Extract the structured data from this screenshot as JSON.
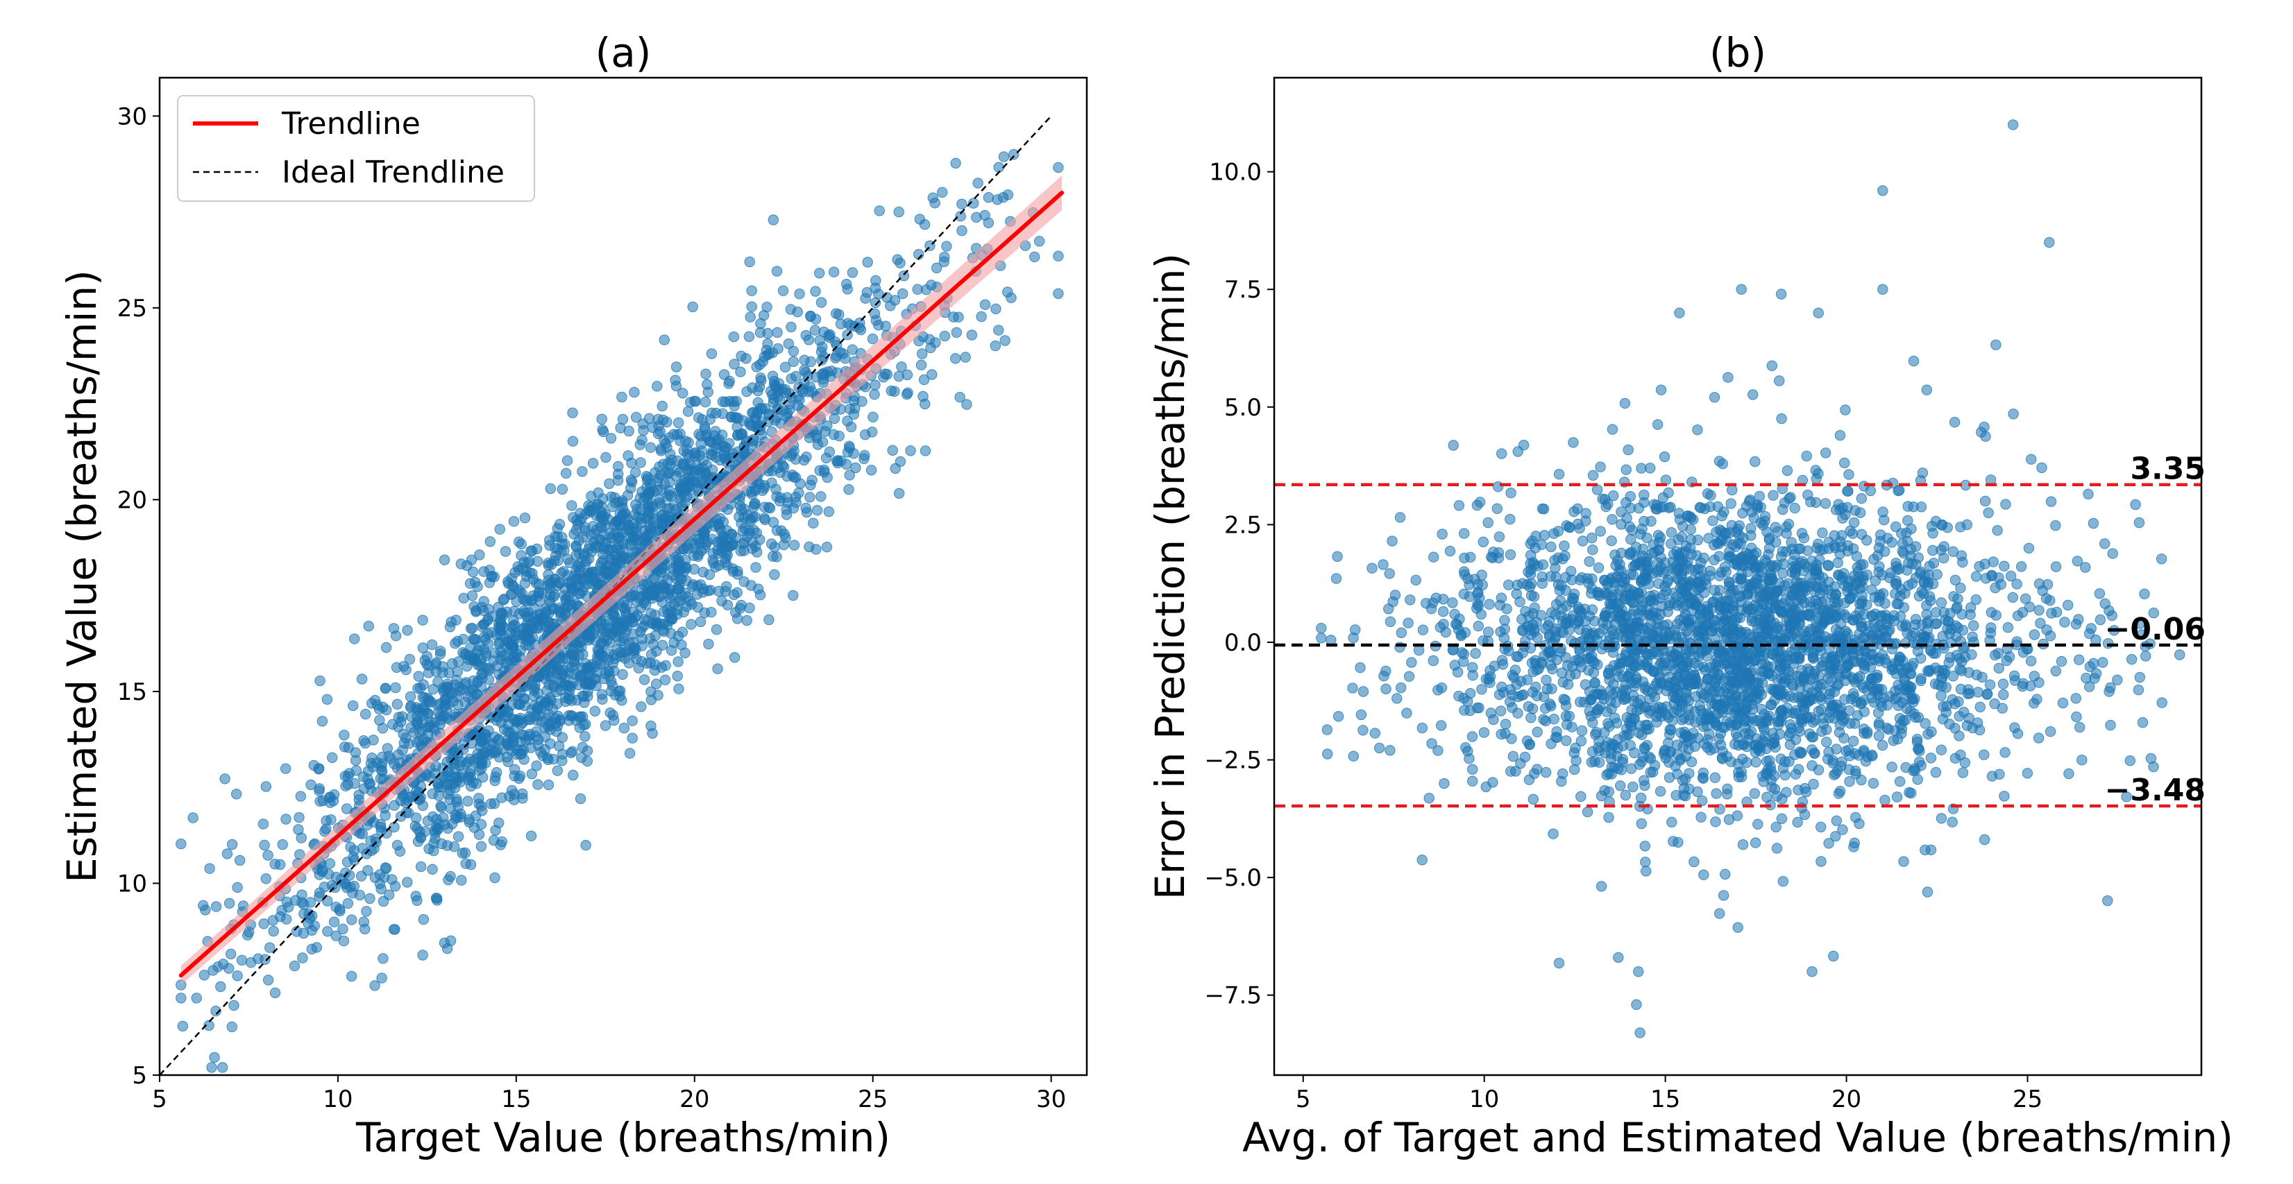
{
  "chart_data": [
    {
      "type": "scatter",
      "title": "(a)",
      "xlabel": "Target Value (breaths/min)",
      "ylabel": "Estimated Value (breaths/min)",
      "xlim": [
        5,
        31
      ],
      "ylim": [
        5,
        31
      ],
      "xticks": [
        5,
        10,
        15,
        20,
        25,
        30
      ],
      "yticks": [
        5,
        10,
        15,
        20,
        25,
        30
      ],
      "grid": false,
      "legend_position": "top-left",
      "series": [
        {
          "name": "Trendline",
          "kind": "line",
          "color": "#ff0000",
          "x": [
            5.6,
            30.3
          ],
          "y": [
            7.6,
            28.0
          ]
        },
        {
          "name": "Ideal Trendline",
          "kind": "dashed-line",
          "color": "#000000",
          "x": [
            5.0,
            30.0
          ],
          "y": [
            5.0,
            30.0
          ]
        }
      ],
      "scatter": {
        "color": "#1f77b4",
        "opacity": 0.55,
        "n_points_approx": 3000,
        "approx_distribution": "estimated ≈ 0.83 × target + 2.95, spread sd ≈ 1.7 breaths/min; target values mostly 6–29"
      }
    },
    {
      "type": "scatter",
      "title": "(b)",
      "xlabel": "Avg. of Target and Estimated Value (breaths/min)",
      "ylabel": "Error in Prediction (breaths/min)",
      "xlim": [
        4.2,
        29.8
      ],
      "ylim": [
        -9.2,
        12.0
      ],
      "xticks": [
        5,
        10,
        15,
        20,
        25
      ],
      "yticks": [
        -7.5,
        -5.0,
        -2.5,
        0.0,
        2.5,
        5.0,
        7.5,
        10.0
      ],
      "grid": false,
      "reference_lines": [
        {
          "label": "3.35",
          "value": 3.35,
          "color": "#e41a1c",
          "style": "dashed"
        },
        {
          "label": "−0.06",
          "value": -0.06,
          "color": "#000000",
          "style": "dashed"
        },
        {
          "label": "−3.48",
          "value": -3.48,
          "color": "#e41a1c",
          "style": "dashed"
        }
      ],
      "scatter": {
        "color": "#1f77b4",
        "opacity": 0.55,
        "n_points_approx": 3000,
        "approx_distribution": "mean error ≈ −0.06, sd ≈ 1.73; average values mostly 5.5–29",
        "notable_points": [
          {
            "x": 24.6,
            "y": 11.0
          },
          {
            "x": 21.0,
            "y": 9.6
          },
          {
            "x": 25.6,
            "y": 8.5
          },
          {
            "x": 21.0,
            "y": 7.5
          },
          {
            "x": 17.1,
            "y": 7.5
          },
          {
            "x": 18.2,
            "y": 7.4
          },
          {
            "x": 14.3,
            "y": -8.3
          },
          {
            "x": 14.2,
            "y": -7.7
          },
          {
            "x": 13.7,
            "y": -6.7
          }
        ]
      }
    }
  ]
}
